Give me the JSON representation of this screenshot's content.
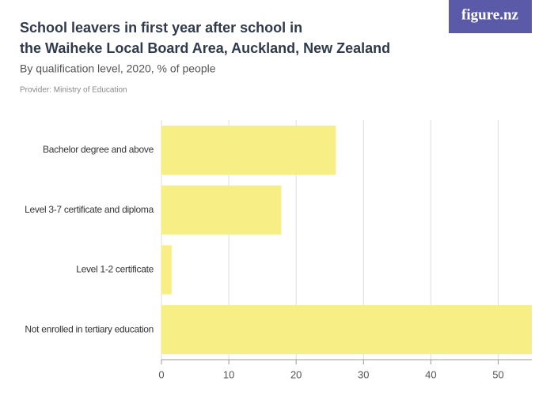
{
  "chart_data": {
    "type": "hbar",
    "title_lines": [
      "School leavers in first year after school in",
      "the Waiheke Local Board Area, Auckland, New Zealand"
    ],
    "subtitle": "By qualification level, 2020, % of people",
    "provider": "Provider: Ministry of Education",
    "logo": "figure.nz",
    "categories": [
      "Bachelor degree and above",
      "Level 3-7 certificate and diploma",
      "Level 1-2 certificate",
      "Not enrolled in tertiary education"
    ],
    "values": [
      25.9,
      17.8,
      1.5,
      55
    ],
    "color": "#f7ef86",
    "xlim": [
      0,
      55
    ],
    "xticks": [
      0,
      10,
      20,
      30,
      40,
      50
    ],
    "grid": true
  }
}
